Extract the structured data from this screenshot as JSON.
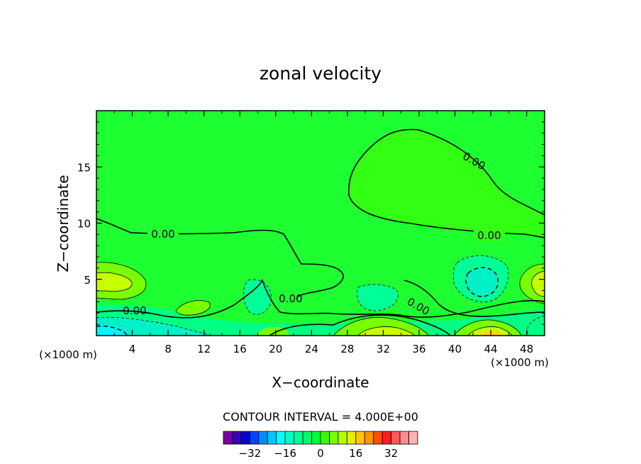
{
  "chart_data": {
    "type": "contour",
    "title": "zonal velocity",
    "xlabel": "X−coordinate",
    "ylabel": "Z−coordinate",
    "x_unit_left": "(×1000 m)",
    "x_unit_right": "(×1000 m)",
    "xlim": [
      0,
      50
    ],
    "ylim": [
      0,
      20
    ],
    "x_ticks": [
      4,
      8,
      12,
      16,
      20,
      24,
      28,
      32,
      36,
      40,
      44,
      48
    ],
    "y_ticks": [
      5,
      10,
      15
    ],
    "grid": false,
    "contour_interval_text": "CONTOUR INTERVAL = 4.000E+00",
    "contour_labels": [
      "0.00",
      "0.00",
      "0.00",
      "0.00",
      "0.00",
      "0.00"
    ],
    "colorbar": {
      "tick_labels": [
        "−32",
        "−16",
        "0",
        "16",
        "32"
      ],
      "tick_values": [
        -32,
        -16,
        0,
        16,
        32
      ],
      "colors": [
        "#7a00a8",
        "#3c00b4",
        "#0000d2",
        "#0046ff",
        "#008cff",
        "#00c8ff",
        "#00ffff",
        "#00ffc8",
        "#00ff96",
        "#00ff64",
        "#00ff32",
        "#32ff00",
        "#78ff00",
        "#b4ff00",
        "#e6f000",
        "#ffc800",
        "#ff9600",
        "#ff5000",
        "#ff1e1e",
        "#ff5a5a",
        "#ff8c8c",
        "#ffb4b4"
      ]
    },
    "field_colors": {
      "background": "#1eff32",
      "zero_region": "#32ff14",
      "weak_positive": "#78ff00",
      "strong_positive": "#c8ff00",
      "peak_positive": "#ffd700",
      "weak_negative": "#00ff82",
      "strong_negative": "#00f0c8",
      "peak_negative": "#00f5ff"
    }
  }
}
